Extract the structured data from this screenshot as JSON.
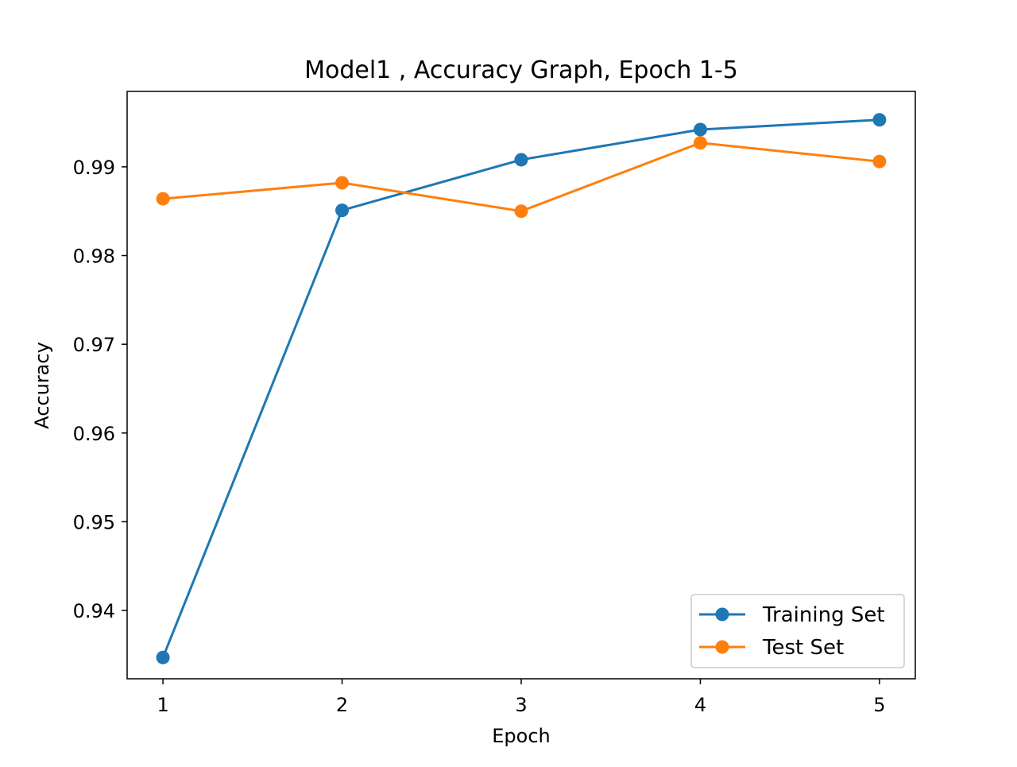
{
  "chart_data": {
    "type": "line",
    "title": "Model1 , Accuracy Graph, Epoch 1-5",
    "xlabel": "Epoch",
    "ylabel": "Accuracy",
    "x": [
      1,
      2,
      3,
      4,
      5
    ],
    "xticks": [
      "1",
      "2",
      "3",
      "4",
      "5"
    ],
    "yticks": [
      "0.94",
      "0.95",
      "0.96",
      "0.97",
      "0.98",
      "0.99"
    ],
    "ytick_values": [
      0.94,
      0.95,
      0.96,
      0.97,
      0.98,
      0.99
    ],
    "xlim": [
      0.8,
      5.2
    ],
    "ylim": [
      0.9323,
      0.9985
    ],
    "grid": false,
    "legend_position": "lower-right",
    "series": [
      {
        "name": "Training Set",
        "color": "#1f77b4",
        "marker": "circle",
        "values": [
          0.9347,
          0.9851,
          0.9908,
          0.9942,
          0.9953
        ]
      },
      {
        "name": "Test Set",
        "color": "#ff7f0e",
        "marker": "circle",
        "values": [
          0.9864,
          0.9882,
          0.985,
          0.9927,
          0.9906
        ]
      }
    ]
  }
}
